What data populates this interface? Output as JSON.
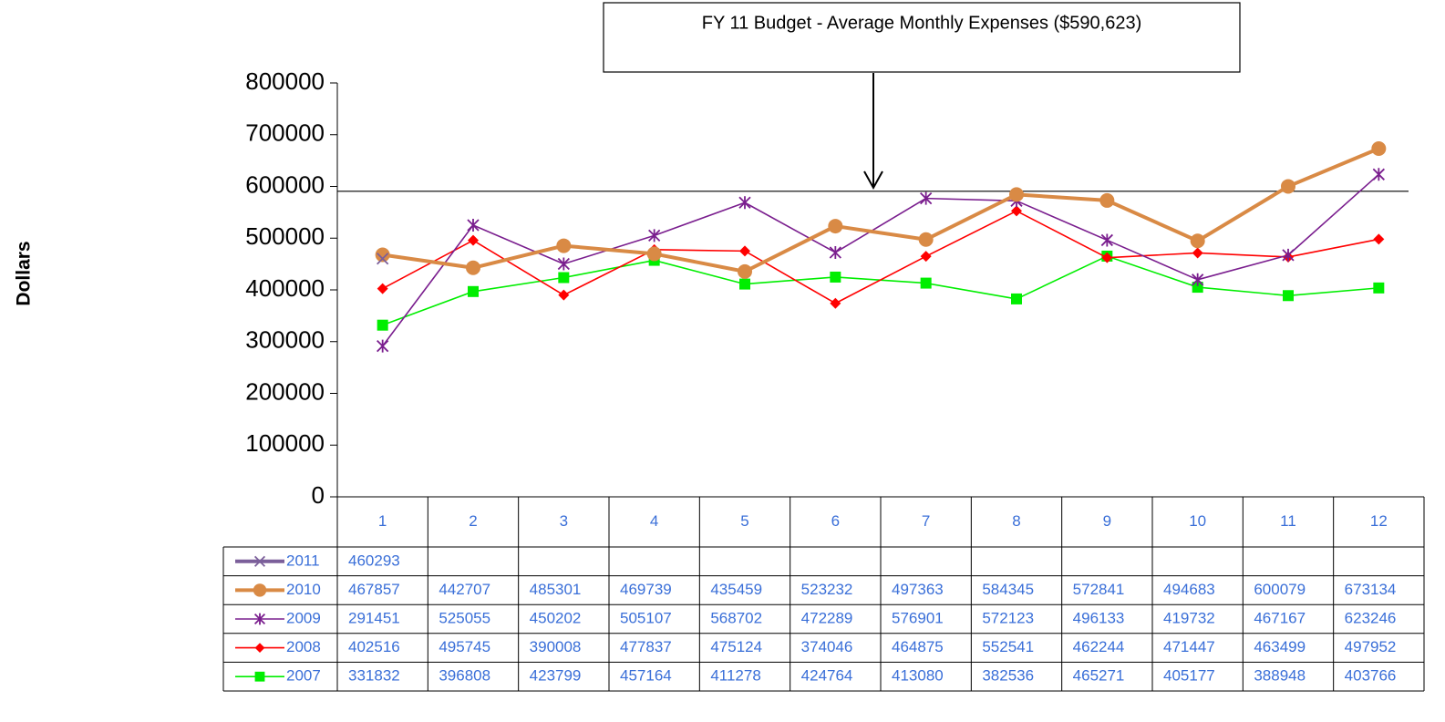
{
  "chart_data": {
    "type": "line",
    "y_label": "Dollars",
    "reference_line": {
      "value": 590623,
      "label": "FY 11 Budget - Average Monthly Expenses  ($590,623)"
    },
    "categories": [
      "1",
      "2",
      "3",
      "4",
      "5",
      "6",
      "7",
      "8",
      "9",
      "10",
      "11",
      "12"
    ],
    "series": [
      {
        "name": "2011",
        "color": "#7b5f9a",
        "marker": "x",
        "line_width": 4,
        "values": [
          460293,
          null,
          null,
          null,
          null,
          null,
          null,
          null,
          null,
          null,
          null,
          null
        ]
      },
      {
        "name": "2010",
        "color": "#d98a45",
        "marker": "circle",
        "line_width": 4,
        "values": [
          467857,
          442707,
          485301,
          469739,
          435459,
          523232,
          497363,
          584345,
          572841,
          494683,
          600079,
          673134
        ]
      },
      {
        "name": "2009",
        "color": "#7a1e8e",
        "marker": "star",
        "line_width": 1.6,
        "values": [
          291451,
          525055,
          450202,
          505107,
          568702,
          472289,
          576901,
          572123,
          496133,
          419732,
          467167,
          623246
        ]
      },
      {
        "name": "2008",
        "color": "#ff0000",
        "marker": "diamond",
        "line_width": 1.6,
        "values": [
          402516,
          495745,
          390008,
          477837,
          475124,
          374046,
          464875,
          552541,
          462244,
          471447,
          463499,
          497952
        ]
      },
      {
        "name": "2007",
        "color": "#00ee00",
        "marker": "square",
        "line_width": 1.6,
        "values": [
          331832,
          396808,
          423799,
          457164,
          411278,
          424764,
          413080,
          382536,
          465271,
          405177,
          388948,
          403766
        ]
      }
    ],
    "ylim": [
      0,
      800000
    ],
    "yticks": [
      0,
      100000,
      200000,
      300000,
      400000,
      500000,
      600000,
      700000,
      800000
    ],
    "data_table": true
  }
}
